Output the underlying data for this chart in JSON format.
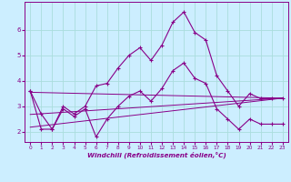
{
  "xlabel": "Windchill (Refroidissement éolien,°C)",
  "bg_color": "#cceeff",
  "line_color": "#880088",
  "grid_color": "#aadddd",
  "xlim": [
    -0.5,
    23.5
  ],
  "ylim": [
    1.6,
    7.1
  ],
  "yticks": [
    2,
    3,
    4,
    5,
    6
  ],
  "xticks": [
    0,
    1,
    2,
    3,
    4,
    5,
    6,
    7,
    8,
    9,
    10,
    11,
    12,
    13,
    14,
    15,
    16,
    17,
    18,
    19,
    20,
    21,
    22,
    23
  ],
  "series1_x": [
    0,
    1,
    2,
    3,
    4,
    5,
    6,
    7,
    8,
    9,
    10,
    11,
    12,
    13,
    14,
    15,
    16,
    17,
    18,
    19,
    20,
    21,
    22,
    23
  ],
  "series1_y": [
    3.6,
    2.7,
    2.1,
    3.0,
    2.7,
    3.0,
    3.8,
    3.9,
    4.5,
    5.0,
    5.3,
    4.8,
    5.4,
    6.3,
    6.7,
    5.9,
    5.6,
    4.2,
    3.6,
    3.0,
    3.5,
    3.3,
    3.3,
    3.3
  ],
  "series2_x": [
    0,
    1,
    2,
    3,
    4,
    5,
    6,
    7,
    8,
    9,
    10,
    11,
    12,
    13,
    14,
    15,
    16,
    17,
    18,
    19,
    20,
    21,
    22,
    23
  ],
  "series2_y": [
    3.6,
    2.1,
    2.1,
    2.9,
    2.6,
    2.9,
    1.8,
    2.5,
    3.0,
    3.4,
    3.6,
    3.2,
    3.7,
    4.4,
    4.7,
    4.1,
    3.9,
    2.9,
    2.5,
    2.1,
    2.5,
    2.3,
    2.3,
    2.3
  ],
  "trend1_x": [
    0,
    23
  ],
  "trend1_y": [
    2.68,
    3.32
  ],
  "trend2_x": [
    0,
    23
  ],
  "trend2_y": [
    2.18,
    3.32
  ],
  "trend3_x": [
    0,
    23
  ],
  "trend3_y": [
    3.55,
    3.32
  ]
}
